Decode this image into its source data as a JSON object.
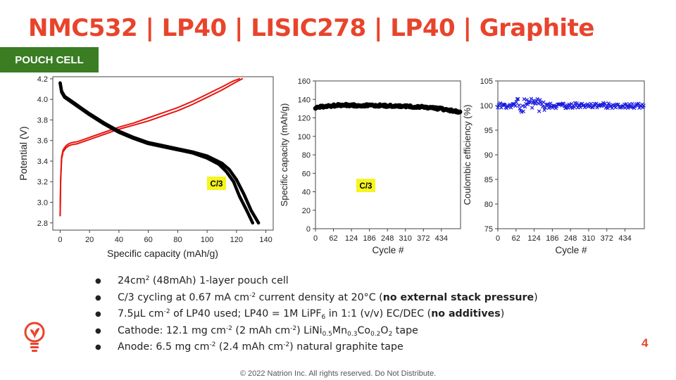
{
  "slide": {
    "title": "NMC532 | LP40 | LISIC278 | LP40 | Graphite",
    "badge": "POUCH CELL",
    "page_number": "4",
    "footer": "© 2022 Natrion Inc. All rights reserved. Do Not Distribute.",
    "colors": {
      "title": "#e8442c",
      "badge": "#3a7d23",
      "charge": "#e8150f",
      "discharge": "#000000",
      "ce": "#1a1adf",
      "highlight": "#f5f51f"
    }
  },
  "bullets": {
    "b1": {
      "t1": "24cm",
      "s1": "2",
      "t2": " (48mAh) 1-layer pouch cell"
    },
    "b2": {
      "t1": "C/3 cycling at 0.67 mA cm",
      "s1": "-2",
      "t2": " current density at 20°C (",
      "bold": "no external stack pressure",
      "t3": ")"
    },
    "b3": {
      "t1": "7.5µL cm",
      "s1": "-2",
      "t2": " of LP40 used; LP40 = 1M LiPF",
      "sub1": "6",
      "t3": " in 1:1 (v/v) EC/DEC (",
      "bold": "no additives",
      "t4": ")"
    },
    "b4": {
      "t1": "Cathode: 12.1 mg cm",
      "s1": "-2",
      "t2": " (2 mAh cm",
      "s2": "-2",
      "t3": ") LiNi",
      "sub1": "0.5",
      "t4": "Mn",
      "sub2": "0.3",
      "t5": "Co",
      "sub3": "0.2",
      "t6": "O",
      "sub4": "2",
      "t7": " tape"
    },
    "b5": {
      "t1": "Anode: 6.5 mg cm",
      "s1": "-2",
      "t2": " (2.4 mAh cm",
      "s2": "-2",
      "t3": ") natural graphite tape"
    }
  },
  "chart_data": [
    {
      "type": "line",
      "xlabel": "Specific capacity (mAh/g)",
      "ylabel": "Potential (V)",
      "xlim": [
        -5,
        145
      ],
      "ylim": [
        2.73,
        4.22
      ],
      "xticks": [
        0,
        20,
        40,
        60,
        80,
        100,
        120,
        140
      ],
      "yticks": [
        2.8,
        3.0,
        3.2,
        3.4,
        3.6,
        3.8,
        4.0,
        4.2
      ],
      "annotation": "C/3",
      "series": [
        {
          "role": "charge",
          "x": [
            0,
            0.3,
            1,
            2,
            4,
            6,
            8,
            12,
            20,
            30,
            40,
            50,
            60,
            70,
            80,
            90,
            100,
            110,
            120,
            124
          ],
          "y": [
            2.87,
            3.2,
            3.42,
            3.49,
            3.53,
            3.55,
            3.56,
            3.57,
            3.61,
            3.66,
            3.71,
            3.75,
            3.79,
            3.84,
            3.89,
            3.95,
            4.02,
            4.09,
            4.17,
            4.2
          ]
        },
        {
          "role": "charge",
          "x": [
            0,
            0.3,
            1,
            2,
            4,
            6,
            8,
            12,
            20,
            30,
            40,
            50,
            60,
            70,
            80,
            90,
            100,
            110,
            118,
            122
          ],
          "y": [
            2.87,
            3.22,
            3.44,
            3.51,
            3.55,
            3.57,
            3.58,
            3.59,
            3.63,
            3.68,
            3.73,
            3.77,
            3.82,
            3.87,
            3.92,
            3.98,
            4.05,
            4.12,
            4.18,
            4.2
          ]
        },
        {
          "role": "discharge",
          "x": [
            0,
            1,
            3,
            6,
            10,
            15,
            20,
            30,
            40,
            50,
            60,
            70,
            80,
            90,
            100,
            110,
            115,
            120,
            125,
            130,
            135
          ],
          "y": [
            4.16,
            4.08,
            4.03,
            4.0,
            3.96,
            3.91,
            3.86,
            3.77,
            3.69,
            3.63,
            3.58,
            3.55,
            3.52,
            3.49,
            3.45,
            3.38,
            3.32,
            3.22,
            3.08,
            2.92,
            2.8
          ]
        },
        {
          "role": "discharge",
          "x": [
            0,
            1,
            3,
            6,
            10,
            15,
            20,
            30,
            40,
            50,
            60,
            70,
            80,
            90,
            100,
            108,
            113,
            118,
            122,
            127,
            131
          ],
          "y": [
            4.16,
            4.07,
            4.02,
            3.99,
            3.95,
            3.9,
            3.85,
            3.76,
            3.68,
            3.62,
            3.57,
            3.54,
            3.51,
            3.48,
            3.43,
            3.37,
            3.3,
            3.2,
            3.06,
            2.92,
            2.8
          ]
        }
      ]
    },
    {
      "type": "scatter",
      "xlabel": "Cycle #",
      "ylabel": "Specific capacity (mAh/g)",
      "xlim": [
        0,
        500
      ],
      "ylim": [
        0,
        160
      ],
      "xticks": [
        0,
        62,
        124,
        186,
        248,
        310,
        372,
        434
      ],
      "yticks": [
        0,
        20,
        40,
        60,
        80,
        100,
        120,
        140,
        160
      ],
      "annotation": "C/3",
      "series": [
        {
          "x": [
            0,
            50,
            100,
            150,
            200,
            250,
            300,
            350,
            400,
            450,
            500
          ],
          "y": [
            131,
            133,
            134,
            133.5,
            133.5,
            133,
            132.5,
            132,
            131,
            129,
            126
          ]
        }
      ]
    },
    {
      "type": "scatter",
      "xlabel": "Cycle #",
      "ylabel": "Coulombic efficiency (%)",
      "xlim": [
        0,
        500
      ],
      "ylim": [
        75,
        105
      ],
      "xticks": [
        0,
        62,
        124,
        186,
        248,
        310,
        372,
        434
      ],
      "yticks": [
        75,
        80,
        85,
        90,
        95,
        100,
        105
      ],
      "series": [
        {
          "x": [
            0,
            50,
            100,
            150,
            200,
            250,
            300,
            350,
            400,
            450,
            500
          ],
          "y": [
            100,
            100,
            100,
            100,
            100,
            100,
            100,
            100,
            100,
            100,
            100
          ]
        }
      ]
    }
  ]
}
